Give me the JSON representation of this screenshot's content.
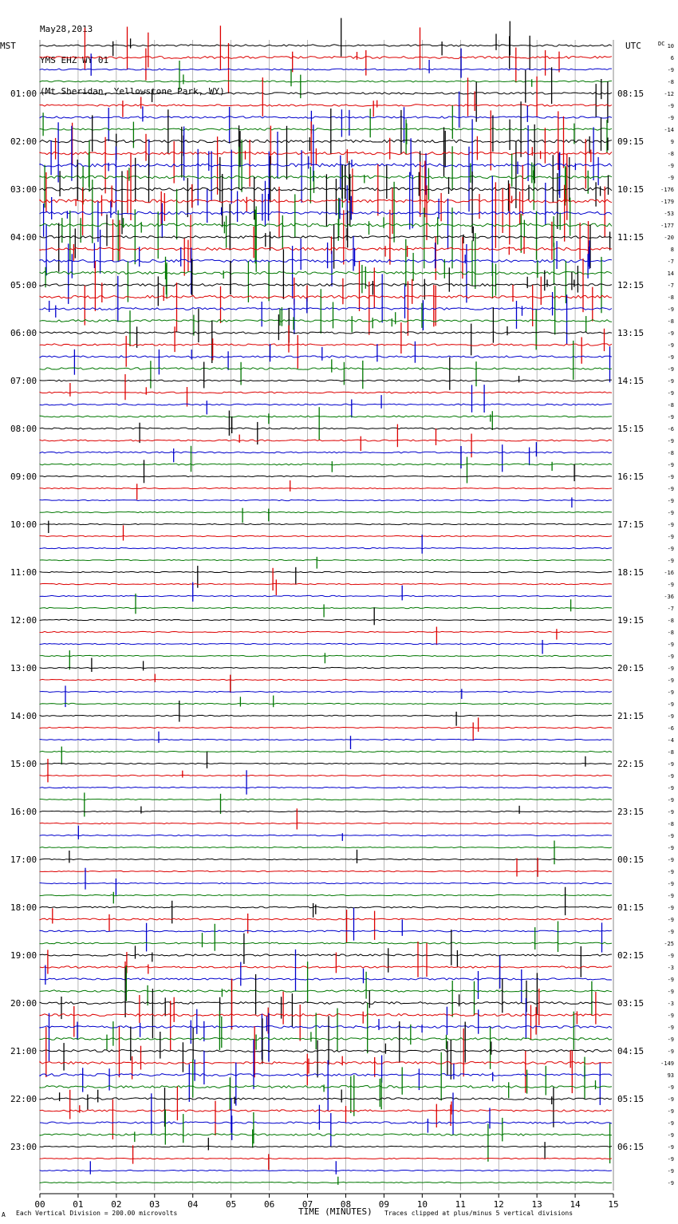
{
  "header": {
    "date": "May28,2013",
    "station": "YMS EHZ WY 01",
    "location": "(Mt Sheridan, Yellowstone Park, WY)"
  },
  "labels": {
    "left_tz": "MST",
    "right_tz": "UTC",
    "dc_label": "DC",
    "x_axis_title": "TIME (MINUTES)",
    "footer_left": "Each Vertical Division =  200.00 microvolts",
    "footer_right": "Traces clipped at plus/minus 5 vertical divisions",
    "footer_mark": "A"
  },
  "colors": {
    "trace_cycle": [
      "#000000",
      "#dd0000",
      "#0000cc",
      "#007700"
    ],
    "grid": "#888888"
  },
  "chart_data": {
    "type": "line",
    "title": "YMS EHZ WY 01",
    "xlabel": "TIME (MINUTES)",
    "xlim": [
      0,
      15
    ],
    "x_ticks": [
      "00",
      "01",
      "02",
      "03",
      "04",
      "05",
      "06",
      "07",
      "08",
      "09",
      "10",
      "11",
      "12",
      "13",
      "14",
      "15"
    ],
    "traces_per_hour": 4,
    "minutes_per_trace": 15,
    "hour_labels_left": [
      "01:00",
      "02:00",
      "03:00",
      "04:00",
      "05:00",
      "06:00",
      "07:00",
      "08:00",
      "09:00",
      "10:00",
      "11:00",
      "12:00",
      "13:00",
      "14:00",
      "15:00",
      "16:00",
      "17:00",
      "18:00",
      "19:00",
      "20:00",
      "21:00",
      "22:00",
      "23:00"
    ],
    "hour_labels_right": [
      "08:15",
      "09:15",
      "10:15",
      "11:15",
      "12:15",
      "13:15",
      "14:15",
      "15:15",
      "16:15",
      "17:15",
      "18:15",
      "19:15",
      "20:15",
      "21:15",
      "22:15",
      "23:15",
      "00:15",
      "01:15",
      "02:15",
      "03:15",
      "04:15",
      "05:15",
      "06:15"
    ],
    "dc_offsets": [
      "10",
      "6",
      "-9",
      "-8",
      "-12",
      "-9",
      "-9",
      "-14",
      "9",
      "-8",
      "-9",
      "-9",
      "-176",
      "-179",
      "-53",
      "-177",
      "-20",
      "8",
      "-7",
      "14",
      "-7",
      "-8",
      "-9",
      "-8",
      "-9",
      "-9",
      "-9",
      "-9",
      "-9",
      "-9",
      "-8",
      "-9",
      "-6",
      "-9",
      "-8",
      "-9",
      "-9",
      "-9",
      "-9",
      "-9",
      "-9",
      "-9",
      "-9",
      "-9",
      "-16",
      "-9",
      "-36",
      "-7",
      "-8",
      "-8",
      "-9",
      "-9",
      "-9",
      "-9",
      "-9",
      "-9",
      "-9",
      "-6",
      "-4",
      "-8",
      "-9",
      "-9",
      "-9",
      "-9",
      "-9",
      "-8",
      "-9",
      "-9",
      "-9",
      "-9",
      "-9",
      "-9",
      "-9",
      "-9",
      "-9",
      "-25",
      "-9",
      "-3",
      "-9",
      "-9",
      "-3",
      "-9",
      "-9",
      "-9",
      "-9",
      "-149",
      "93",
      "-9",
      "-9",
      "-9",
      "-9",
      "-9",
      "-9",
      "-9",
      "-9",
      "-9"
    ],
    "activity_per_trace": [
      3,
      4,
      2,
      2,
      3,
      3,
      3,
      3,
      5,
      5,
      6,
      5,
      6,
      6,
      5,
      6,
      4,
      5,
      5,
      5,
      4,
      5,
      4,
      4,
      3,
      3,
      3,
      3,
      2,
      2,
      2,
      2,
      2,
      2,
      2,
      2,
      1,
      1,
      1,
      1,
      1,
      1,
      1,
      1,
      1,
      1,
      1,
      1,
      1,
      1,
      1,
      1,
      1,
      1,
      1,
      1,
      1,
      1,
      1,
      1,
      1,
      1,
      1,
      1,
      1,
      1,
      1,
      1,
      1,
      1,
      1,
      1,
      2,
      2,
      2,
      2,
      3,
      3,
      3,
      3,
      4,
      4,
      4,
      4,
      4,
      4,
      4,
      4,
      3,
      3,
      3,
      3,
      1,
      1,
      1,
      1
    ]
  }
}
